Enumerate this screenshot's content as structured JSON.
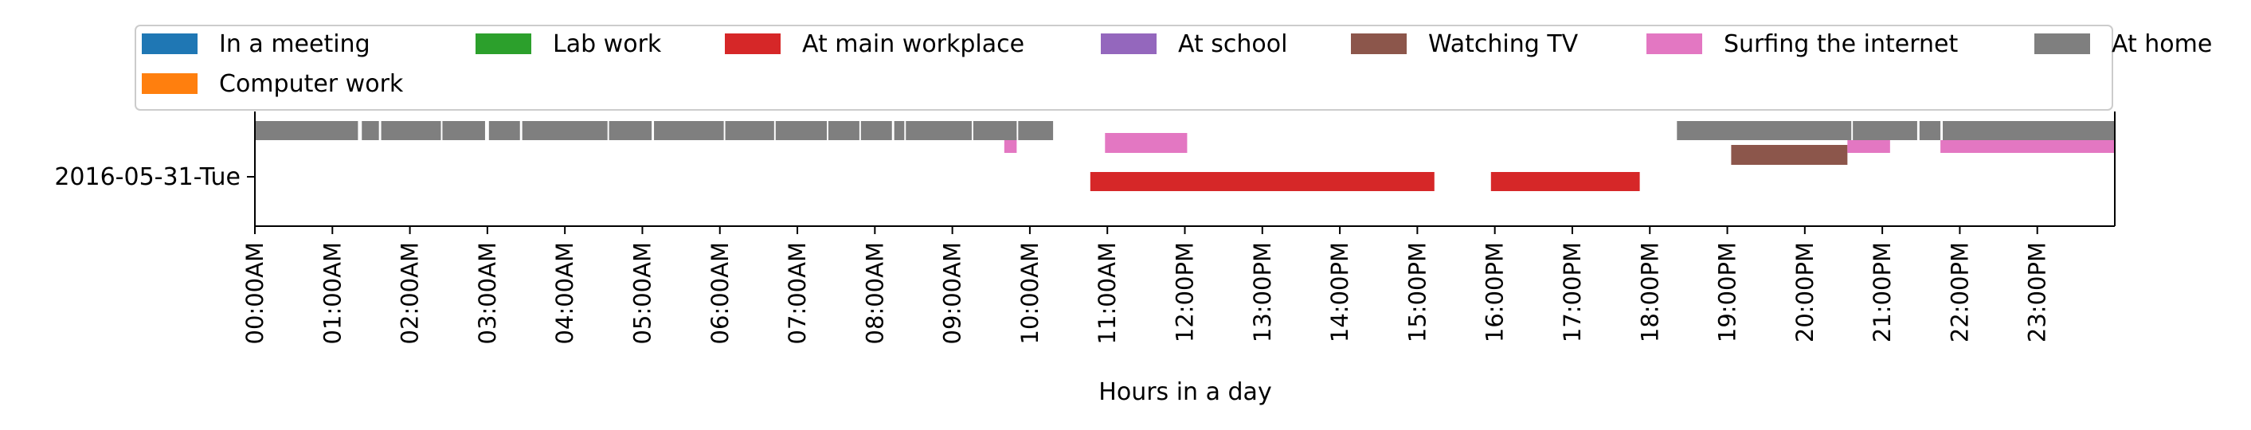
{
  "chart_data": {
    "type": "timeline",
    "xlabel": "Hours in a day",
    "ylabel": "",
    "title": "",
    "xlim": [
      0,
      24
    ],
    "y_categories": [
      "2016-05-31-Tue"
    ],
    "x_tick_labels": [
      "00:00AM",
      "01:00AM",
      "02:00AM",
      "03:00AM",
      "04:00AM",
      "05:00AM",
      "06:00AM",
      "07:00AM",
      "08:00AM",
      "09:00AM",
      "10:00AM",
      "11:00AM",
      "12:00PM",
      "13:00PM",
      "14:00PM",
      "15:00PM",
      "16:00PM",
      "17:00PM",
      "18:00PM",
      "19:00PM",
      "20:00PM",
      "21:00PM",
      "22:00PM",
      "23:00PM"
    ],
    "grid": false,
    "legend_position": "top",
    "series": [
      {
        "name": "In a meeting",
        "color": "#1f77b4",
        "row": 0,
        "segments": []
      },
      {
        "name": "Computer work",
        "color": "#ff7f0e",
        "row": 0,
        "segments": []
      },
      {
        "name": "Lab work",
        "color": "#2ca02c",
        "row": 0,
        "segments": []
      },
      {
        "name": "At main workplace",
        "color": "#d62728",
        "row": 0,
        "segments": [
          [
            10.78,
            15.22
          ],
          [
            15.95,
            17.87
          ]
        ]
      },
      {
        "name": "At school",
        "color": "#9467bd",
        "row": 0,
        "segments": []
      },
      {
        "name": "Watching TV",
        "color": "#8c564b",
        "row": 0,
        "segments": [
          [
            19.05,
            20.55
          ]
        ]
      },
      {
        "name": "Surfing the internet",
        "color": "#e377c2",
        "row": 0,
        "segments": [
          [
            9.67,
            9.83
          ],
          [
            10.97,
            12.03
          ],
          [
            20.55,
            21.1
          ],
          [
            21.75,
            24.0
          ]
        ]
      },
      {
        "name": "At home",
        "color": "#7f7f7f",
        "row": 0,
        "segments": [
          [
            0.0,
            1.33
          ],
          [
            1.38,
            1.6
          ],
          [
            1.63,
            2.4
          ],
          [
            2.42,
            2.97
          ],
          [
            3.02,
            3.42
          ],
          [
            3.45,
            4.55
          ],
          [
            4.57,
            5.12
          ],
          [
            5.15,
            6.05
          ],
          [
            6.07,
            6.7
          ],
          [
            6.72,
            7.38
          ],
          [
            7.4,
            7.8
          ],
          [
            7.82,
            8.22
          ],
          [
            8.25,
            8.38
          ],
          [
            8.4,
            9.25
          ],
          [
            9.27,
            9.83
          ],
          [
            9.85,
            10.3
          ],
          [
            18.35,
            20.6
          ],
          [
            20.62,
            21.45
          ],
          [
            21.48,
            21.75
          ],
          [
            21.78,
            24.0
          ]
        ]
      }
    ]
  }
}
